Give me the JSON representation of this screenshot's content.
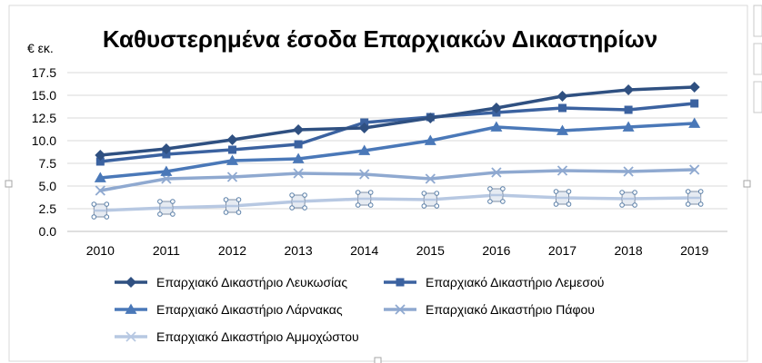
{
  "chart_data": {
    "type": "line",
    "title": "Καθυστερημένα έσοδα Επαρχιακών Δικαστηρίων",
    "unit_label": "€ εκ.",
    "xlabel": "",
    "ylabel": "",
    "ylim": [
      0,
      17.5
    ],
    "yticks": [
      "0.0",
      "2.5",
      "5.0",
      "7.5",
      "10.0",
      "12.5",
      "15.0",
      "17.5"
    ],
    "categories": [
      "2010",
      "2011",
      "2012",
      "2013",
      "2014",
      "2015",
      "2016",
      "2017",
      "2018",
      "2019"
    ],
    "grid": "horizontal",
    "legend_position": "bottom",
    "series": [
      {
        "name": "Επαρχιακό Δικαστήριο Λευκωσίας",
        "color": "#2f5081",
        "marker": "diamond",
        "values": [
          8.4,
          9.1,
          10.1,
          11.2,
          11.4,
          12.5,
          13.6,
          14.9,
          15.6,
          15.9
        ]
      },
      {
        "name": "Επαρχιακό Δικαστήριο Λεμεσού",
        "color": "#3b62a0",
        "marker": "square",
        "values": [
          7.7,
          8.5,
          9.0,
          9.6,
          12.0,
          12.6,
          13.1,
          13.6,
          13.4,
          14.1
        ]
      },
      {
        "name": "Επαρχιακό Δικαστήριο Λάρνακας",
        "color": "#4a78b8",
        "marker": "triangle",
        "values": [
          5.9,
          6.6,
          7.8,
          8.0,
          8.9,
          10.0,
          11.5,
          11.1,
          11.5,
          11.9
        ]
      },
      {
        "name": "Επαρχιακό Δικαστήριο Πάφου",
        "color": "#8fa9d0",
        "marker": "x",
        "values": [
          4.5,
          5.8,
          6.0,
          6.4,
          6.3,
          5.8,
          6.5,
          6.7,
          6.6,
          6.8
        ]
      },
      {
        "name": "Επαρχιακό Δικαστήριο Αμμοχώστου",
        "color": "#b7c8e2",
        "marker": "selected-square",
        "values": [
          2.3,
          2.6,
          2.8,
          3.3,
          3.6,
          3.5,
          4.0,
          3.7,
          3.6,
          3.7
        ]
      }
    ]
  }
}
